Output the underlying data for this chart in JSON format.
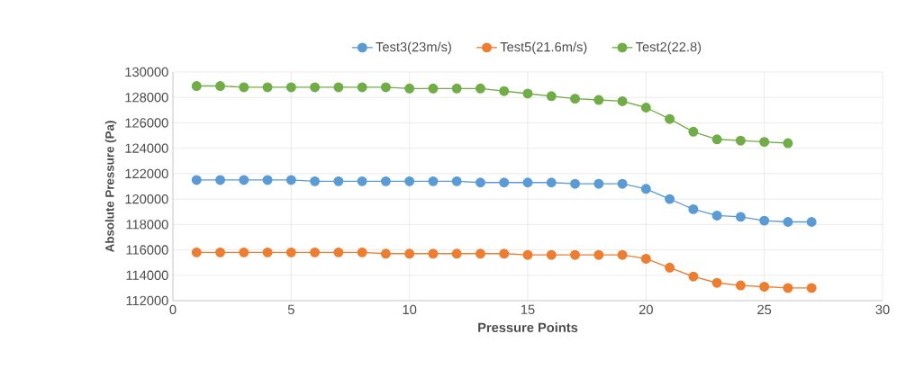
{
  "chart_data": {
    "type": "line",
    "xlabel": "Pressure Points",
    "ylabel": "Absolute Pressure (Pa)",
    "x": [
      1,
      2,
      3,
      4,
      5,
      6,
      7,
      8,
      9,
      10,
      11,
      12,
      13,
      14,
      15,
      16,
      17,
      18,
      19,
      20,
      21,
      22,
      23,
      24,
      25,
      26,
      27
    ],
    "series": [
      {
        "name": "Test3(23m/s)",
        "color": "#5b9bd5",
        "values": [
          121500,
          121500,
          121500,
          121500,
          121500,
          121400,
          121400,
          121400,
          121400,
          121400,
          121400,
          121400,
          121300,
          121300,
          121300,
          121300,
          121200,
          121200,
          121200,
          120800,
          120000,
          119200,
          118700,
          118600,
          118300,
          118200,
          118200
        ]
      },
      {
        "name": "Test5(21.6m/s)",
        "color": "#ed7d31",
        "values": [
          115800,
          115800,
          115800,
          115800,
          115800,
          115800,
          115800,
          115800,
          115700,
          115700,
          115700,
          115700,
          115700,
          115700,
          115600,
          115600,
          115600,
          115600,
          115600,
          115300,
          114600,
          113900,
          113400,
          113200,
          113100,
          113000,
          113000
        ]
      },
      {
        "name": "Test2(22.8)",
        "color": "#70ad47",
        "values": [
          128900,
          128900,
          128800,
          128800,
          128800,
          128800,
          128800,
          128800,
          128800,
          128700,
          128700,
          128700,
          128700,
          128500,
          128300,
          128100,
          127900,
          127800,
          127700,
          127200,
          126300,
          125300,
          124700,
          124600,
          124500,
          124400,
          null
        ]
      }
    ],
    "xlim": [
      0,
      30
    ],
    "xticks": [
      0,
      5,
      10,
      15,
      20,
      25,
      30
    ],
    "ylim": [
      112000,
      130000
    ],
    "yticks": [
      112000,
      114000,
      116000,
      118000,
      120000,
      122000,
      124000,
      126000,
      128000,
      130000
    ],
    "grid": true,
    "legend": "top",
    "marker": "circle",
    "line_style": "solid"
  }
}
